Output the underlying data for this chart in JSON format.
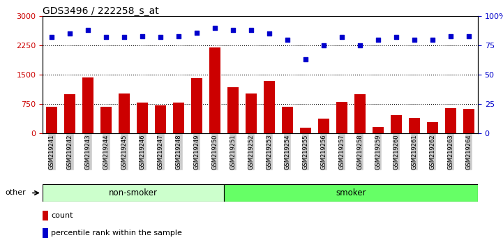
{
  "title": "GDS3496 / 222258_s_at",
  "samples": [
    "GSM219241",
    "GSM219242",
    "GSM219243",
    "GSM219244",
    "GSM219245",
    "GSM219246",
    "GSM219247",
    "GSM219248",
    "GSM219249",
    "GSM219250",
    "GSM219251",
    "GSM219252",
    "GSM219253",
    "GSM219254",
    "GSM219255",
    "GSM219256",
    "GSM219257",
    "GSM219258",
    "GSM219259",
    "GSM219260",
    "GSM219261",
    "GSM219262",
    "GSM219263",
    "GSM219264"
  ],
  "counts": [
    680,
    1000,
    1430,
    680,
    1020,
    780,
    720,
    780,
    1420,
    2200,
    1180,
    1020,
    1340,
    680,
    140,
    370,
    800,
    1000,
    160,
    470,
    400,
    290,
    650,
    630
  ],
  "percentiles": [
    82,
    85,
    88,
    82,
    82,
    83,
    82,
    83,
    86,
    90,
    88,
    88,
    85,
    80,
    63,
    75,
    82,
    75,
    80,
    82,
    80,
    80,
    83,
    83
  ],
  "groups": [
    "non-smoker",
    "non-smoker",
    "non-smoker",
    "non-smoker",
    "non-smoker",
    "non-smoker",
    "non-smoker",
    "non-smoker",
    "non-smoker",
    "non-smoker",
    "smoker",
    "smoker",
    "smoker",
    "smoker",
    "smoker",
    "smoker",
    "smoker",
    "smoker",
    "smoker",
    "smoker",
    "smoker",
    "smoker",
    "smoker",
    "smoker"
  ],
  "bar_color": "#cc0000",
  "dot_color": "#0000cc",
  "non_smoker_bg": "#ccffcc",
  "smoker_bg": "#66ff66",
  "tick_bg": "#cccccc",
  "ylim_left": [
    0,
    3000
  ],
  "ylim_right": [
    0,
    100
  ],
  "yticks_left": [
    0,
    750,
    1500,
    2250,
    3000
  ],
  "yticks_right": [
    0,
    25,
    50,
    75,
    100
  ],
  "grid_values": [
    750,
    1500,
    2250
  ],
  "legend_count_label": "count",
  "legend_pct_label": "percentile rank within the sample"
}
